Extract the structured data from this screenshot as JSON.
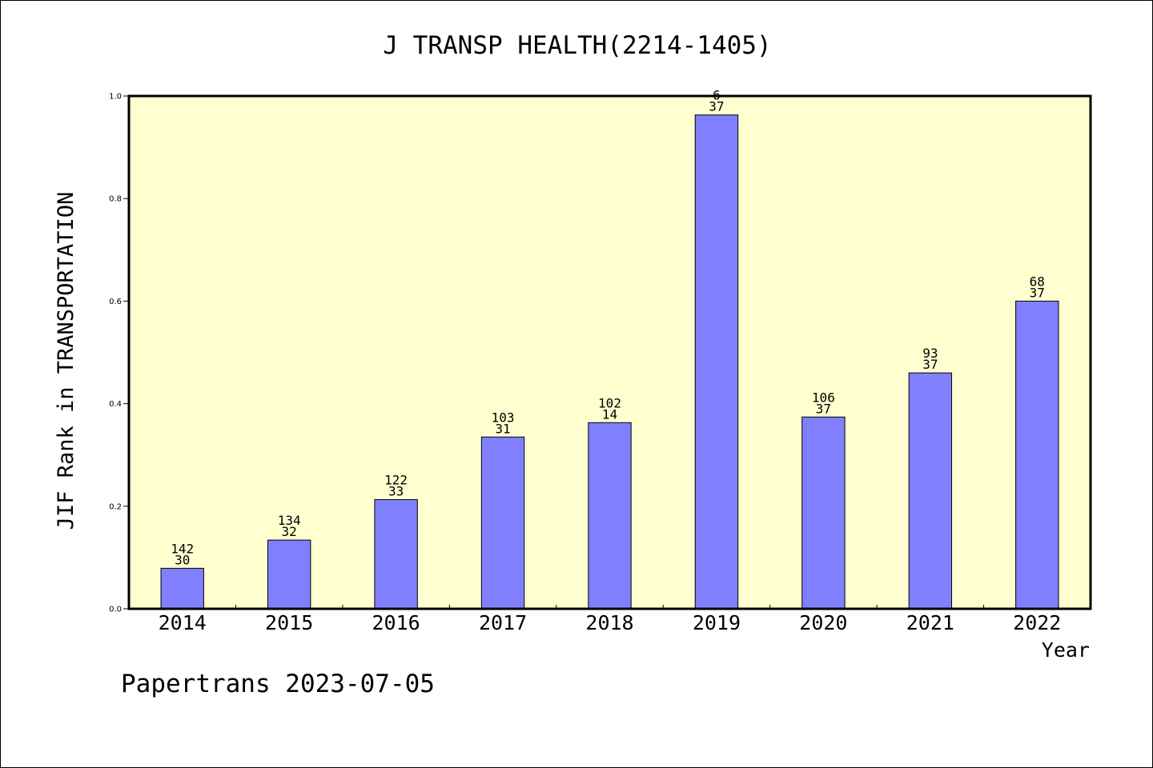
{
  "chart_data": {
    "type": "bar",
    "title": "J TRANSP HEALTH(2214-1405)",
    "ylabel": "JIF Rank in TRANSPORTATION",
    "xlabel": "Year",
    "categories": [
      "2014",
      "2015",
      "2016",
      "2017",
      "2018",
      "2019",
      "2020",
      "2021",
      "2022"
    ],
    "values": [
      0.079,
      0.134,
      0.213,
      0.335,
      0.363,
      0.963,
      0.374,
      0.46,
      0.6
    ],
    "annotations": [
      {
        "top": "142",
        "bottom": "30"
      },
      {
        "top": "134",
        "bottom": "32"
      },
      {
        "top": "122",
        "bottom": "33"
      },
      {
        "top": "103",
        "bottom": "31"
      },
      {
        "top": "102",
        "bottom": "14"
      },
      {
        "top": "6",
        "bottom": "37"
      },
      {
        "top": "106",
        "bottom": "37"
      },
      {
        "top": "93",
        "bottom": "37"
      },
      {
        "top": "68",
        "bottom": "37"
      }
    ],
    "ylim": [
      0,
      1.0
    ],
    "yticks": [
      "0.0",
      "0.2",
      "0.4",
      "0.6",
      "0.8",
      "1.0"
    ],
    "ytick_values": [
      0,
      0.2,
      0.4,
      0.6,
      0.8,
      1.0
    ],
    "grid": false,
    "colors": {
      "bar": "#8080ff",
      "plot_bg": "#ffffd0",
      "axis": "#000000"
    }
  },
  "footer": "Papertrans 2023-07-05"
}
